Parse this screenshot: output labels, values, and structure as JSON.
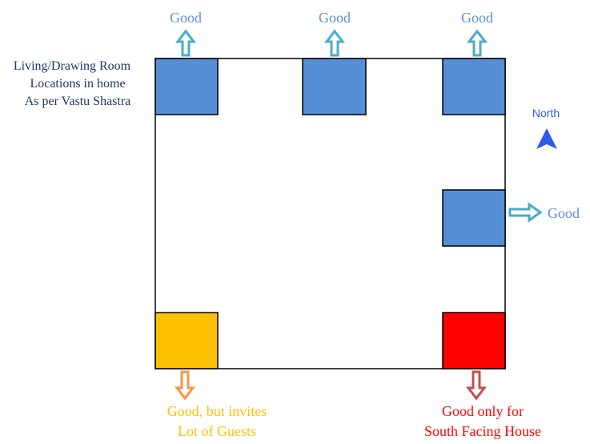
{
  "title_lines": [
    "Living/Drawing Room",
    "Locations in home",
    "As per Vastu Shastra"
  ],
  "labels": {
    "top_left": "Good",
    "top_middle": "Good",
    "top_right": "Good",
    "right_middle": "Good",
    "bottom_left": [
      "Good, but invites",
      "Lot of Guests"
    ],
    "bottom_right": [
      "Good only for",
      "South Facing House"
    ]
  },
  "compass": {
    "label": "North",
    "icon": "north-arrow-icon"
  },
  "colors": {
    "good_room": "#558ED5",
    "guests_room": "#FFC000",
    "south_room": "#FF0000",
    "good_arrow": "#4BACC6",
    "guests_arrow": "#F79646",
    "south_arrow": "#C0504D",
    "north_arrow": "#2F5BEA"
  }
}
